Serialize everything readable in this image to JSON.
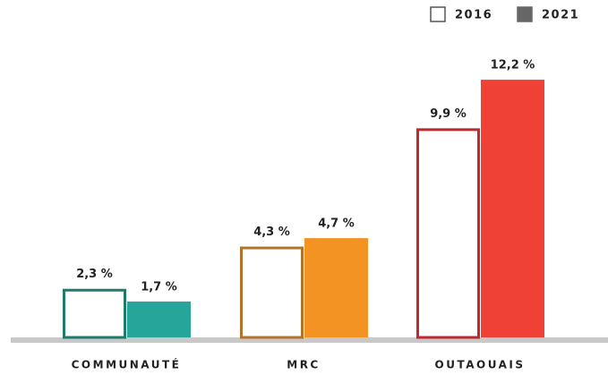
{
  "chart_data": {
    "type": "bar",
    "categories": [
      "COMMUNAUTÉ",
      "MRC",
      "OUTAOUAIS"
    ],
    "series": [
      {
        "name": "2016",
        "color": "#ffffff",
        "colors": [
          "#1e7a6a",
          "#b5722a",
          "#c0282d"
        ],
        "values": [
          2.3,
          4.3,
          9.9
        ],
        "value_labels": [
          "2,3 %",
          "4,3 %",
          "9,9 %"
        ]
      },
      {
        "name": "2021",
        "color": "#666666",
        "colors": [
          "#26a69a",
          "#f39323",
          "#ef4136"
        ],
        "values": [
          1.7,
          4.7,
          12.2
        ],
        "value_labels": [
          "1,7 %",
          "4,7 %",
          "12,2 %"
        ]
      }
    ]
  }
}
